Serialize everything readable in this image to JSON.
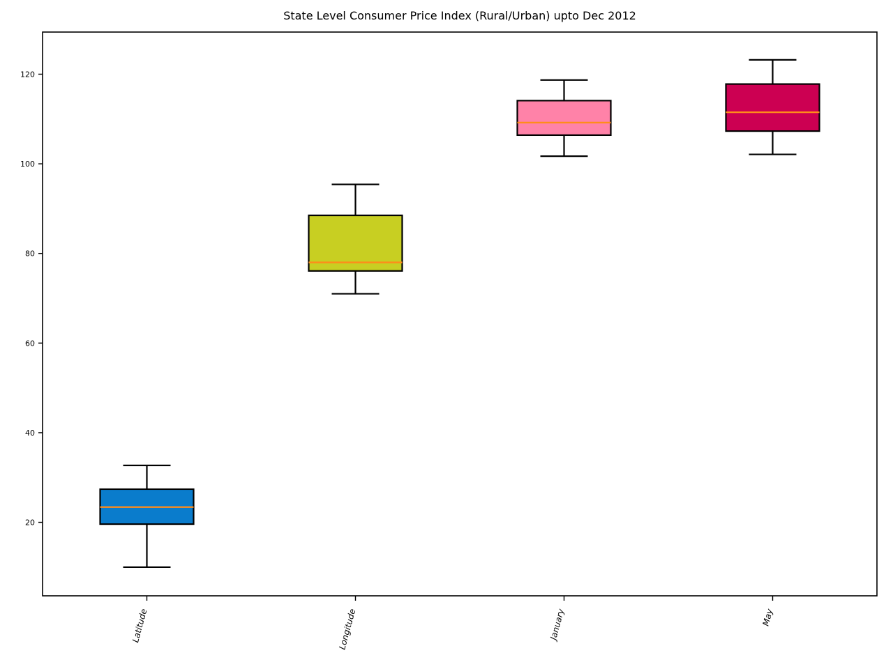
{
  "chart_data": {
    "type": "box",
    "title": "State Level Consumer Price Index (Rural/Urban) upto Dec 2012",
    "xlabel": "",
    "ylabel": "",
    "ylim": [
      3.6,
      129.4
    ],
    "yticks": [
      20,
      40,
      60,
      80,
      100,
      120
    ],
    "grid": false,
    "categories": [
      "Latitude",
      "Longitude",
      "January",
      "May"
    ],
    "boxes": [
      {
        "category": "Latitude",
        "whisker_low": 10.0,
        "q1": 19.6,
        "median": 23.4,
        "q3": 27.4,
        "whisker_high": 32.7,
        "color": "#0a7ccc"
      },
      {
        "category": "Longitude",
        "whisker_low": 71.0,
        "q1": 76.1,
        "median": 78.0,
        "q3": 88.5,
        "whisker_high": 95.4,
        "color": "#c8cf22"
      },
      {
        "category": "January",
        "whisker_low": 101.7,
        "q1": 106.4,
        "median": 109.2,
        "q3": 114.1,
        "whisker_high": 118.7,
        "color": "#ff82a8"
      },
      {
        "category": "May",
        "whisker_low": 102.1,
        "q1": 107.3,
        "median": 111.5,
        "q3": 117.8,
        "whisker_high": 123.2,
        "color": "#cc0052"
      }
    ],
    "median_color": "#ff8c1a"
  }
}
